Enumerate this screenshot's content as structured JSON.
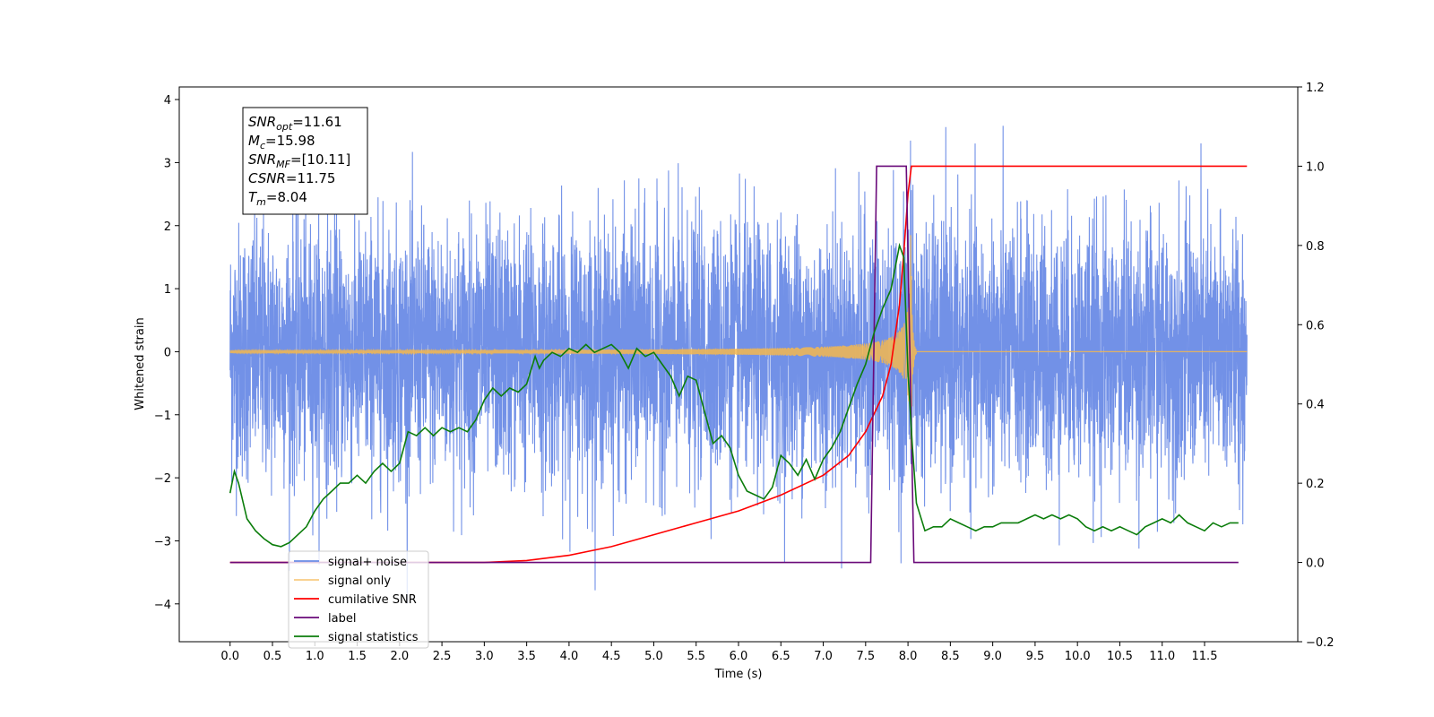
{
  "chart_data": {
    "type": "line",
    "xlabel": "Time (s)",
    "ylabel": "Whitened strain",
    "xlim": [
      -0.6,
      12.6
    ],
    "ylim": [
      -4.6,
      4.2
    ],
    "y2lim": [
      -0.2,
      1.2
    ],
    "x_ticks": [
      "0.0",
      "0.5",
      "1.0",
      "1.5",
      "2.0",
      "2.5",
      "3.0",
      "3.5",
      "4.0",
      "4.5",
      "5.0",
      "5.5",
      "6.0",
      "6.5",
      "7.0",
      "7.5",
      "8.0",
      "8.5",
      "9.0",
      "9.5",
      "10.0",
      "10.5",
      "11.0",
      "11.5"
    ],
    "y_ticks": [
      "4",
      "3",
      "2",
      "1",
      "0",
      "−1",
      "−2",
      "−3",
      "−4"
    ],
    "y2_ticks": [
      "1.2",
      "1.0",
      "0.8",
      "0.6",
      "0.4",
      "0.2",
      "0.0",
      "−0.2"
    ],
    "annotation_lines": [
      {
        "name": "SNR",
        "sub": "opt",
        "value": "=11.61"
      },
      {
        "name": "M",
        "sub": "c",
        "value": "=15.98"
      },
      {
        "name": "SNR",
        "sub": "MF",
        "value": "=[10.11]"
      },
      {
        "name": "CSNR",
        "sub": "",
        "value": "=11.75"
      },
      {
        "name": "T",
        "sub": "m",
        "value": "=8.04"
      }
    ],
    "series": [
      {
        "name": "signal+ noise",
        "color": "#6a8be6",
        "axis": "left",
        "description_kind": "noise",
        "std": 1.0,
        "t_range": [
          0.0,
          12.0
        ]
      },
      {
        "name": "signal only",
        "color": "#f5b74d",
        "axis": "left",
        "description_kind": "chirp",
        "merger_time": 8.04,
        "t_range": [
          0.0,
          12.0
        ]
      },
      {
        "name": "cumilative SNR",
        "color": "#ff0000",
        "axis": "right",
        "x": [
          0.0,
          3.0,
          3.5,
          4.0,
          4.5,
          5.0,
          5.5,
          6.0,
          6.5,
          7.0,
          7.3,
          7.5,
          7.7,
          7.8,
          7.9,
          7.95,
          8.0,
          8.04,
          8.06,
          12.0
        ],
        "y": [
          0.0,
          0.0,
          0.005,
          0.018,
          0.04,
          0.07,
          0.1,
          0.13,
          0.17,
          0.22,
          0.27,
          0.33,
          0.42,
          0.5,
          0.65,
          0.78,
          0.93,
          1.0,
          1.0,
          1.0
        ]
      },
      {
        "name": "label",
        "color": "#6a0a7a",
        "axis": "right",
        "x": [
          0.0,
          7.56,
          7.63,
          7.98,
          8.07,
          11.9
        ],
        "y": [
          0.0,
          0.0,
          1.0,
          1.0,
          0.0,
          0.0
        ]
      },
      {
        "name": "signal statistics",
        "color": "#0b7d0b",
        "axis": "right",
        "x": [
          0.0,
          0.05,
          0.1,
          0.2,
          0.3,
          0.4,
          0.5,
          0.6,
          0.7,
          0.8,
          0.9,
          1.0,
          1.1,
          1.2,
          1.3,
          1.4,
          1.5,
          1.6,
          1.7,
          1.8,
          1.9,
          2.0,
          2.1,
          2.2,
          2.3,
          2.4,
          2.5,
          2.6,
          2.7,
          2.8,
          2.9,
          3.0,
          3.1,
          3.2,
          3.3,
          3.4,
          3.5,
          3.6,
          3.65,
          3.7,
          3.8,
          3.9,
          4.0,
          4.1,
          4.2,
          4.3,
          4.4,
          4.5,
          4.6,
          4.7,
          4.8,
          4.9,
          5.0,
          5.1,
          5.2,
          5.3,
          5.4,
          5.5,
          5.6,
          5.7,
          5.8,
          5.9,
          6.0,
          6.1,
          6.2,
          6.3,
          6.4,
          6.5,
          6.6,
          6.7,
          6.8,
          6.9,
          7.0,
          7.1,
          7.2,
          7.3,
          7.4,
          7.5,
          7.6,
          7.7,
          7.8,
          7.9,
          7.95,
          8.0,
          8.05,
          8.1,
          8.2,
          8.3,
          8.4,
          8.5,
          8.6,
          8.7,
          8.8,
          8.9,
          9.0,
          9.1,
          9.2,
          9.3,
          9.4,
          9.5,
          9.6,
          9.7,
          9.8,
          9.9,
          10.0,
          10.1,
          10.2,
          10.3,
          10.4,
          10.5,
          10.6,
          10.7,
          10.8,
          10.9,
          11.0,
          11.1,
          11.2,
          11.3,
          11.4,
          11.5,
          11.6,
          11.7,
          11.8,
          11.9
        ],
        "y": [
          0.175,
          0.23,
          0.2,
          0.11,
          0.08,
          0.06,
          0.045,
          0.04,
          0.05,
          0.07,
          0.09,
          0.13,
          0.16,
          0.18,
          0.2,
          0.2,
          0.22,
          0.2,
          0.23,
          0.25,
          0.23,
          0.25,
          0.33,
          0.32,
          0.34,
          0.32,
          0.34,
          0.33,
          0.34,
          0.33,
          0.36,
          0.41,
          0.44,
          0.42,
          0.44,
          0.43,
          0.45,
          0.52,
          0.49,
          0.51,
          0.53,
          0.52,
          0.54,
          0.53,
          0.55,
          0.53,
          0.54,
          0.55,
          0.53,
          0.49,
          0.54,
          0.52,
          0.53,
          0.5,
          0.47,
          0.42,
          0.47,
          0.46,
          0.38,
          0.3,
          0.32,
          0.29,
          0.22,
          0.18,
          0.17,
          0.16,
          0.19,
          0.27,
          0.25,
          0.22,
          0.26,
          0.21,
          0.26,
          0.29,
          0.33,
          0.39,
          0.45,
          0.5,
          0.58,
          0.64,
          0.69,
          0.8,
          0.77,
          0.48,
          0.3,
          0.15,
          0.08,
          0.09,
          0.09,
          0.11,
          0.1,
          0.09,
          0.08,
          0.09,
          0.09,
          0.1,
          0.1,
          0.1,
          0.11,
          0.12,
          0.11,
          0.12,
          0.11,
          0.12,
          0.11,
          0.09,
          0.08,
          0.09,
          0.08,
          0.09,
          0.08,
          0.07,
          0.09,
          0.1,
          0.11,
          0.1,
          0.12,
          0.1,
          0.09,
          0.08,
          0.1,
          0.09,
          0.1,
          0.1
        ]
      }
    ],
    "legend": {
      "placement": "lower-left",
      "entries": [
        "signal+ noise",
        "signal only",
        "cumilative SNR",
        "label",
        "signal statistics"
      ]
    }
  }
}
